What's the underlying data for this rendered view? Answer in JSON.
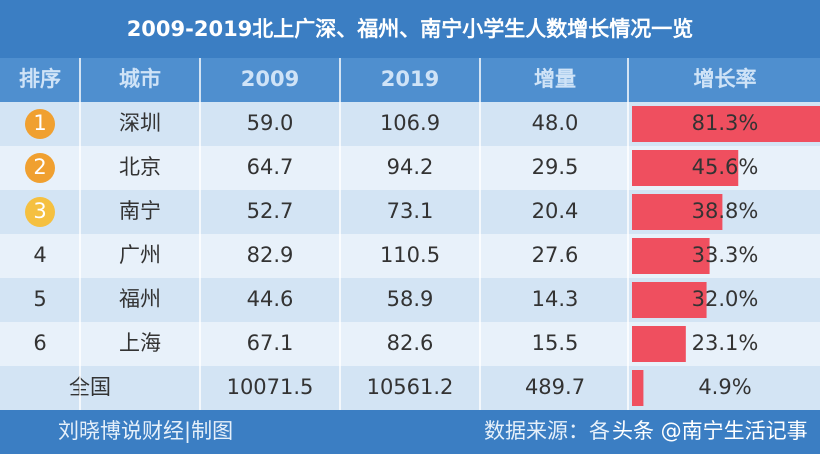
{
  "header": {
    "title": "2009-2019北上广深、福州、南宁小学生人数增长情况一览"
  },
  "table": {
    "columns": [
      "排序",
      "城市",
      "2009",
      "2019",
      "增量",
      "增长率"
    ],
    "rows": [
      [
        "1",
        "深圳",
        "59.0",
        "106.9",
        "48.0",
        {
          "value": 81.3,
          "label": "81.3%"
        }
      ],
      [
        "2",
        "北京",
        "64.7",
        "94.2",
        "29.5",
        {
          "value": 45.6,
          "label": "45.6%"
        }
      ],
      [
        "3",
        "南宁",
        "52.7",
        "73.1",
        "20.4",
        {
          "value": 38.8,
          "label": "38.8%"
        }
      ],
      [
        "4",
        "广州",
        "82.9",
        "110.5",
        "27.6",
        {
          "value": 33.3,
          "label": "33.3%"
        }
      ],
      [
        "5",
        "福州",
        "44.6",
        "58.9",
        "14.3",
        {
          "value": 32.0,
          "label": "32.0%"
        }
      ],
      [
        "6",
        "上海",
        "67.1",
        "82.6",
        "15.5",
        {
          "value": 23.1,
          "label": "23.1%"
        }
      ]
    ],
    "total": [
      "全国",
      "10071.5",
      "10561.2",
      "489.7",
      {
        "value": 4.9,
        "label": "4.9%"
      }
    ]
  },
  "footer": {
    "author": "刘晓博说财经|制图",
    "source": "数据来源：各",
    "watermark": "头条 @南宁生活记事"
  }
}
